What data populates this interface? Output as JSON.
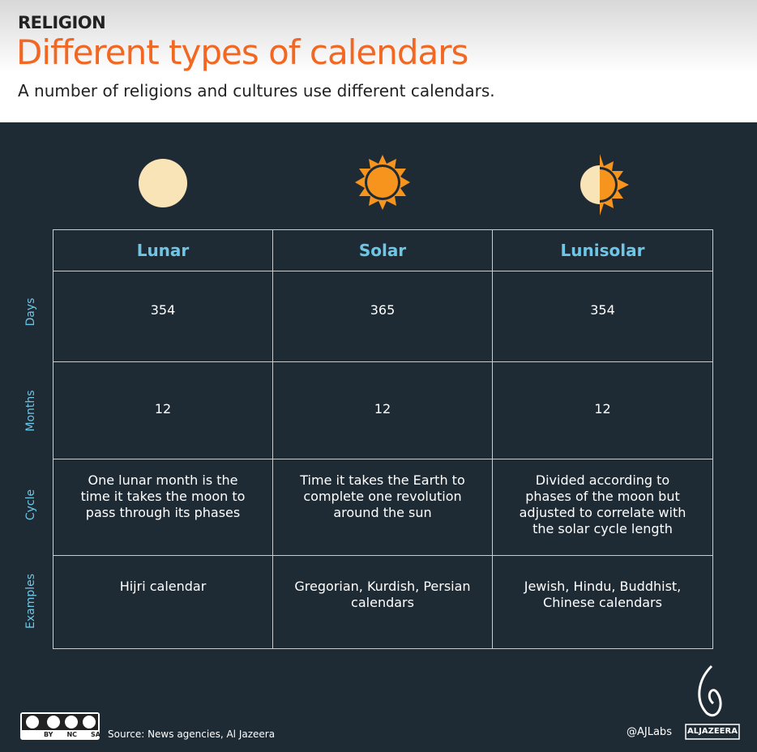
{
  "header": {
    "category": "RELIGION",
    "title": "Different types of calendars",
    "subtitle": "A number of religions and cultures use different calendars."
  },
  "table": {
    "columns": [
      "Lunar",
      "Solar",
      "Lunisolar"
    ],
    "rows": [
      {
        "label": "Days",
        "cells": [
          354,
          365,
          354
        ]
      },
      {
        "label": "Months",
        "cells": [
          12,
          12,
          12
        ]
      },
      {
        "label": "Cycle",
        "cells": [
          "One lunar month is the time it takes the moon to pass through its phases",
          "Time it takes the Earth to complete one revolution around the sun",
          "Divided according to phases of the moon but adjusted to correlate with the solar cycle length"
        ]
      },
      {
        "label": "Examples",
        "cells": [
          "Hijri calendar",
          "Gregorian, Kurdish, Persian calendars",
          "Jewish, Hindu, Buddhist, Chinese calendars"
        ]
      }
    ]
  },
  "footer": {
    "license": [
      "BY",
      "NC",
      "SA"
    ],
    "source": "Source: News agencies, Al Jazeera",
    "handle": "@AJLabs",
    "brand": "ALJAZEERA"
  }
}
